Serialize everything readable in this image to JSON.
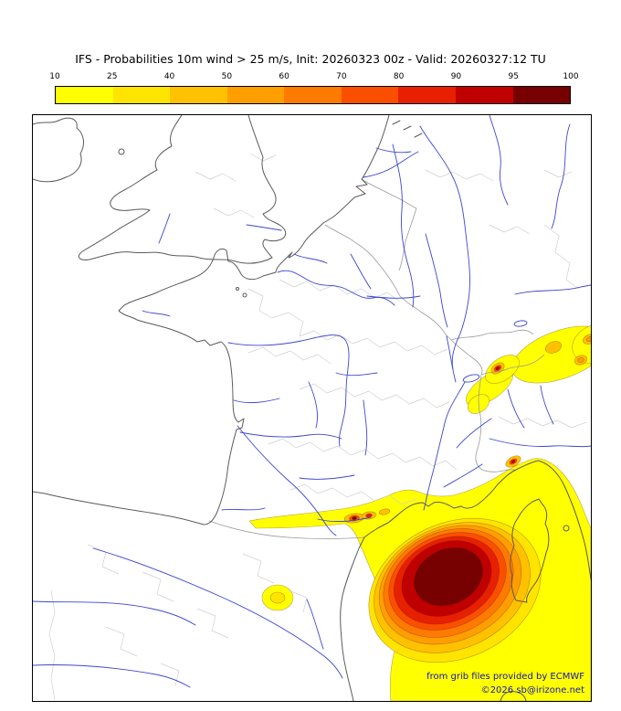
{
  "title": "IFS - Probabilities 10m wind > 25 m/s, Init: 20260323 00z - Valid: 20260327:12 TU",
  "colorbar": {
    "ticks": [
      "10",
      "25",
      "40",
      "50",
      "60",
      "70",
      "80",
      "90",
      "95",
      "100"
    ],
    "colors": [
      "#ffff00",
      "#ffe400",
      "#ffc100",
      "#ff9e00",
      "#ff7a00",
      "#fb4f00",
      "#e62000",
      "#c00000",
      "#770000"
    ]
  },
  "attribution": {
    "line1": "from grib files provided by ECMWF",
    "line2": "©2026 sb@irizone.net"
  },
  "colors": {
    "attribution-color": "#1414b8",
    "river-color": "#3c46d2",
    "coast-color": "#5a5a5a",
    "admin-color": "#d0d0d0",
    "country-border-color": "#9a9a9a"
  }
}
